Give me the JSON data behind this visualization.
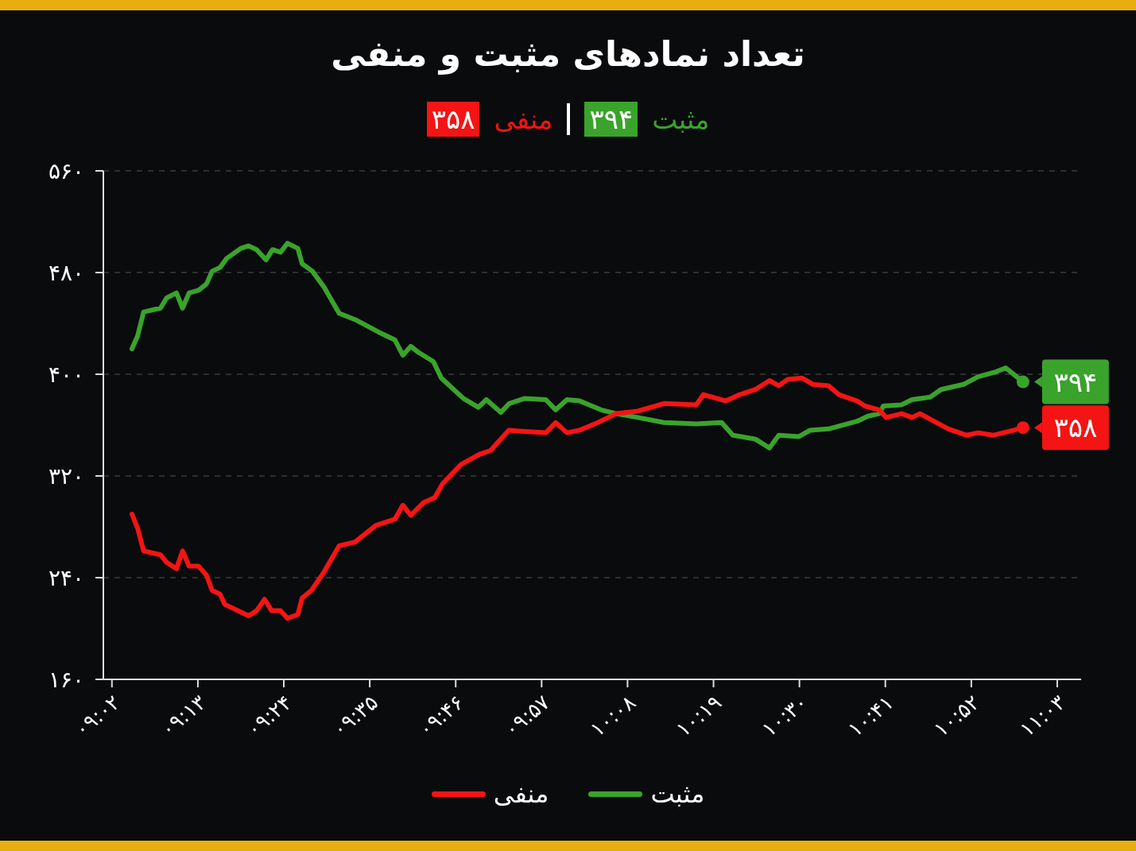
{
  "chart_data": {
    "type": "line",
    "title": "تعداد نمادهای مثبت و منفی",
    "xlim": [
      9.015,
      11.101
    ],
    "xticks": [
      {
        "value": 9.0333,
        "label": "۰۹:۰۲"
      },
      {
        "value": 9.2167,
        "label": "۰۹:۱۳"
      },
      {
        "value": 9.4,
        "label": "۰۹:۲۴"
      },
      {
        "value": 9.5833,
        "label": "۰۹:۳۵"
      },
      {
        "value": 9.7667,
        "label": "۰۹:۴۶"
      },
      {
        "value": 9.95,
        "label": "۰۹:۵۷"
      },
      {
        "value": 10.1333,
        "label": "۱۰:۰۸"
      },
      {
        "value": 10.3167,
        "label": "۱۰:۱۹"
      },
      {
        "value": 10.5,
        "label": "۱۰:۳۰"
      },
      {
        "value": 10.6833,
        "label": "۱۰:۴۱"
      },
      {
        "value": 10.8667,
        "label": "۱۰:۵۲"
      },
      {
        "value": 11.05,
        "label": "۱۱:۰۳"
      }
    ],
    "ylim": [
      160,
      560
    ],
    "yticks": [
      {
        "value": 160,
        "label": "۱۶۰"
      },
      {
        "value": 240,
        "label": "۲۴۰"
      },
      {
        "value": 320,
        "label": "۳۲۰"
      },
      {
        "value": 400,
        "label": "۴۰۰"
      },
      {
        "value": 480,
        "label": "۴۸۰"
      },
      {
        "value": 560,
        "label": "۵۶۰"
      }
    ],
    "grid": "y",
    "legend": "bottom",
    "series": [
      {
        "name": "مثبت",
        "color": "#3aa32c",
        "x": [
          9.076,
          9.088,
          9.101,
          9.137,
          9.15,
          9.171,
          9.184,
          9.198,
          9.218,
          9.235,
          9.247,
          9.264,
          9.278,
          9.308,
          9.325,
          9.342,
          9.362,
          9.376,
          9.393,
          9.408,
          9.43,
          9.439,
          9.461,
          9.485,
          9.518,
          9.552,
          9.603,
          9.637,
          9.654,
          9.671,
          9.688,
          9.719,
          9.736,
          9.783,
          9.815,
          9.832,
          9.863,
          9.881,
          9.914,
          9.959,
          9.98,
          10.004,
          10.031,
          10.077,
          10.109,
          10.155,
          10.211,
          10.28,
          10.334,
          10.358,
          10.406,
          10.436,
          10.456,
          10.499,
          10.523,
          10.562,
          10.623,
          10.646,
          10.67,
          10.679,
          10.718,
          10.74,
          10.779,
          10.802,
          10.85,
          10.881,
          10.92,
          10.94,
          10.977
        ],
        "values": [
          420,
          430,
          449,
          452,
          460,
          464,
          452,
          464,
          466,
          471,
          481,
          484,
          491,
          499,
          501,
          498,
          490,
          498,
          496,
          503,
          499,
          487,
          481,
          469,
          448,
          443,
          433,
          427,
          415,
          422,
          417,
          410,
          397,
          381,
          374,
          380,
          370,
          377,
          381,
          380,
          372,
          380,
          379,
          372,
          369,
          366,
          362,
          361,
          362,
          352,
          349,
          342,
          352,
          351,
          356,
          357,
          363,
          367,
          369,
          375,
          376,
          380,
          382,
          388,
          392,
          398,
          402,
          405,
          394
        ],
        "value_labels": [
          null,
          null,
          null,
          null,
          null,
          null,
          null,
          null,
          null,
          null,
          null,
          null,
          null,
          null,
          null,
          null,
          null,
          null,
          null,
          null,
          null,
          null,
          null,
          null,
          null,
          null,
          null,
          null,
          null,
          null,
          null,
          null,
          null,
          null,
          null,
          null,
          null,
          null,
          null,
          null,
          null,
          null,
          null,
          null,
          null,
          null,
          null,
          null,
          null,
          null,
          null,
          null,
          null,
          null,
          null,
          null,
          null,
          null,
          null,
          null,
          null,
          null,
          null,
          null,
          null,
          null,
          null,
          null,
          "۳۹۴"
        ]
      },
      {
        "name": "منفی",
        "color": "#f41414",
        "x": [
          9.076,
          9.088,
          9.101,
          9.137,
          9.15,
          9.171,
          9.184,
          9.198,
          9.218,
          9.235,
          9.247,
          9.264,
          9.274,
          9.308,
          9.325,
          9.342,
          9.359,
          9.374,
          9.393,
          9.408,
          9.43,
          9.439,
          9.459,
          9.485,
          9.518,
          9.552,
          9.596,
          9.637,
          9.654,
          9.671,
          9.698,
          9.722,
          9.739,
          9.778,
          9.817,
          9.841,
          9.88,
          9.914,
          9.959,
          9.98,
          10.004,
          10.031,
          10.07,
          10.109,
          10.155,
          10.211,
          10.28,
          10.295,
          10.343,
          10.373,
          10.406,
          10.436,
          10.456,
          10.475,
          10.506,
          10.529,
          10.562,
          10.584,
          10.623,
          10.64,
          10.67,
          10.685,
          10.718,
          10.74,
          10.757,
          10.787,
          10.818,
          10.857,
          10.881,
          10.913,
          10.935,
          10.958,
          10.977
        ],
        "values": [
          290,
          279,
          261,
          258,
          252,
          247,
          261,
          249,
          249,
          242,
          230,
          227,
          219,
          213,
          210,
          214,
          223,
          214,
          214,
          208,
          211,
          224,
          230,
          244,
          265,
          268,
          281,
          286,
          297,
          289,
          299,
          303,
          314,
          329,
          337,
          340,
          356,
          355,
          354,
          362,
          354,
          356,
          362,
          369,
          371,
          377,
          376,
          384,
          379,
          384,
          388,
          395,
          391,
          396,
          397,
          392,
          391,
          384,
          379,
          375,
          372,
          366,
          369,
          366,
          369,
          363,
          357,
          352,
          354,
          352,
          354,
          356,
          358
        ],
        "value_labels": [
          null,
          null,
          null,
          null,
          null,
          null,
          null,
          null,
          null,
          null,
          null,
          null,
          null,
          null,
          null,
          null,
          null,
          null,
          null,
          null,
          null,
          null,
          null,
          null,
          null,
          null,
          null,
          null,
          null,
          null,
          null,
          null,
          null,
          null,
          null,
          null,
          null,
          null,
          null,
          null,
          null,
          null,
          null,
          null,
          null,
          null,
          null,
          null,
          null,
          null,
          null,
          null,
          null,
          null,
          null,
          null,
          null,
          null,
          null,
          null,
          null,
          null,
          null,
          null,
          null,
          null,
          null,
          null,
          null,
          null,
          null,
          null,
          "۳۵۸"
        ]
      }
    ]
  }
}
